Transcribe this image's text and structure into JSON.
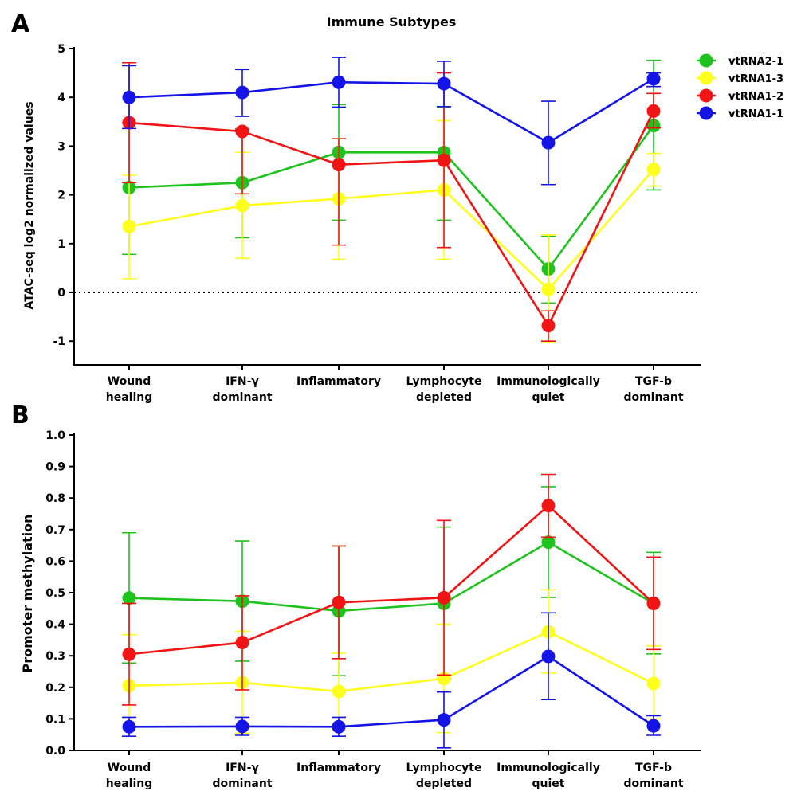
{
  "colors": {
    "vtRNA2-1": "#1ec31e",
    "vtRNA1-3": "#ffff1e",
    "vtRNA1-2": "#f01414",
    "vtRNA1-1": "#1414e6"
  },
  "chart_data": [
    {
      "panel": "A",
      "type": "line",
      "title": "Immune Subtypes",
      "ylabel": "ATAC-seq log2 normalized values",
      "xlabel": "",
      "ylim": [
        -1.5,
        5
      ],
      "yticks": [
        "5",
        "4",
        "3",
        "2",
        "1",
        "0",
        "-1"
      ],
      "zero_line": "dotted",
      "grid": false,
      "legend": "top-right",
      "categories": [
        [
          "Wound",
          "healing"
        ],
        [
          "IFN-γ",
          "dominant"
        ],
        [
          "Inflammatory"
        ],
        [
          "Lymphocyte",
          "depleted"
        ],
        [
          "Immunologically",
          "quiet"
        ],
        [
          "TGF-b",
          "dominant"
        ]
      ],
      "series": [
        {
          "name": "vtRNA2-1",
          "values": [
            2.15,
            2.25,
            2.87,
            2.87,
            0.48,
            3.42
          ],
          "err_low": [
            0.78,
            1.12,
            1.48,
            1.48,
            -0.22,
            2.1
          ],
          "err_high": [
            3.48,
            3.35,
            3.85,
            3.8,
            1.15,
            4.76
          ]
        },
        {
          "name": "vtRNA1-3",
          "values": [
            1.35,
            1.78,
            1.92,
            2.1,
            0.06,
            2.52
          ],
          "err_low": [
            0.28,
            0.7,
            0.68,
            0.68,
            -1.03,
            2.18
          ],
          "err_high": [
            2.4,
            2.87,
            3.15,
            3.52,
            1.18,
            2.85
          ]
        },
        {
          "name": "vtRNA1-2",
          "values": [
            3.48,
            3.3,
            2.62,
            2.71,
            -0.68,
            3.72
          ],
          "err_low": [
            2.25,
            2.02,
            0.97,
            0.92,
            -1.0,
            3.37
          ],
          "err_high": [
            4.71,
            3.35,
            3.15,
            4.5,
            -0.38,
            4.08
          ]
        },
        {
          "name": "vtRNA1-1",
          "values": [
            4.0,
            4.1,
            4.31,
            4.28,
            3.07,
            4.38
          ],
          "err_low": [
            3.36,
            3.61,
            3.8,
            3.81,
            2.21,
            4.22
          ],
          "err_high": [
            4.65,
            4.57,
            4.82,
            4.74,
            3.92,
            4.5
          ]
        }
      ]
    },
    {
      "panel": "B",
      "type": "line",
      "title": "",
      "ylabel": "Promoter methylation",
      "xlabel": "",
      "ylim": [
        0,
        1
      ],
      "yticks": [
        "1.0",
        "0.9",
        "0.8",
        "0.7",
        "0.6",
        "0.5",
        "0.4",
        "0.3",
        "0.2",
        "0.1",
        "0.0"
      ],
      "grid": false,
      "categories": [
        [
          "Wound",
          "healing"
        ],
        [
          "IFN-γ",
          "dominant"
        ],
        [
          "Inflammatory"
        ],
        [
          "Lymphocyte",
          "depleted"
        ],
        [
          "Immunologically",
          "quiet"
        ],
        [
          "TGF-b",
          "dominant"
        ]
      ],
      "series": [
        {
          "name": "vtRNA2-1",
          "values": [
            0.483,
            0.473,
            0.442,
            0.466,
            0.66,
            0.466
          ],
          "err_low": [
            0.277,
            0.283,
            0.237,
            0.228,
            0.485,
            0.306
          ],
          "err_high": [
            0.69,
            0.664,
            0.648,
            0.708,
            0.836,
            0.628
          ]
        },
        {
          "name": "vtRNA1-3",
          "values": [
            0.205,
            0.215,
            0.187,
            0.228,
            0.376,
            0.212
          ],
          "err_low": [
            0.045,
            0.055,
            0.065,
            0.056,
            0.245,
            0.1
          ],
          "err_high": [
            0.367,
            0.378,
            0.308,
            0.4,
            0.509,
            0.331
          ]
        },
        {
          "name": "vtRNA1-2",
          "values": [
            0.305,
            0.342,
            0.469,
            0.484,
            0.776,
            0.466
          ],
          "err_low": [
            0.144,
            0.192,
            0.291,
            0.239,
            0.676,
            0.32
          ],
          "err_high": [
            0.466,
            0.49,
            0.648,
            0.729,
            0.875,
            0.613
          ]
        },
        {
          "name": "vtRNA1-1",
          "values": [
            0.075,
            0.076,
            0.075,
            0.097,
            0.298,
            0.078
          ],
          "err_low": [
            0.045,
            0.048,
            0.045,
            0.008,
            0.161,
            0.048
          ],
          "err_high": [
            0.105,
            0.105,
            0.105,
            0.185,
            0.436,
            0.11
          ]
        }
      ]
    }
  ],
  "panel_labels": [
    "A",
    "B"
  ]
}
